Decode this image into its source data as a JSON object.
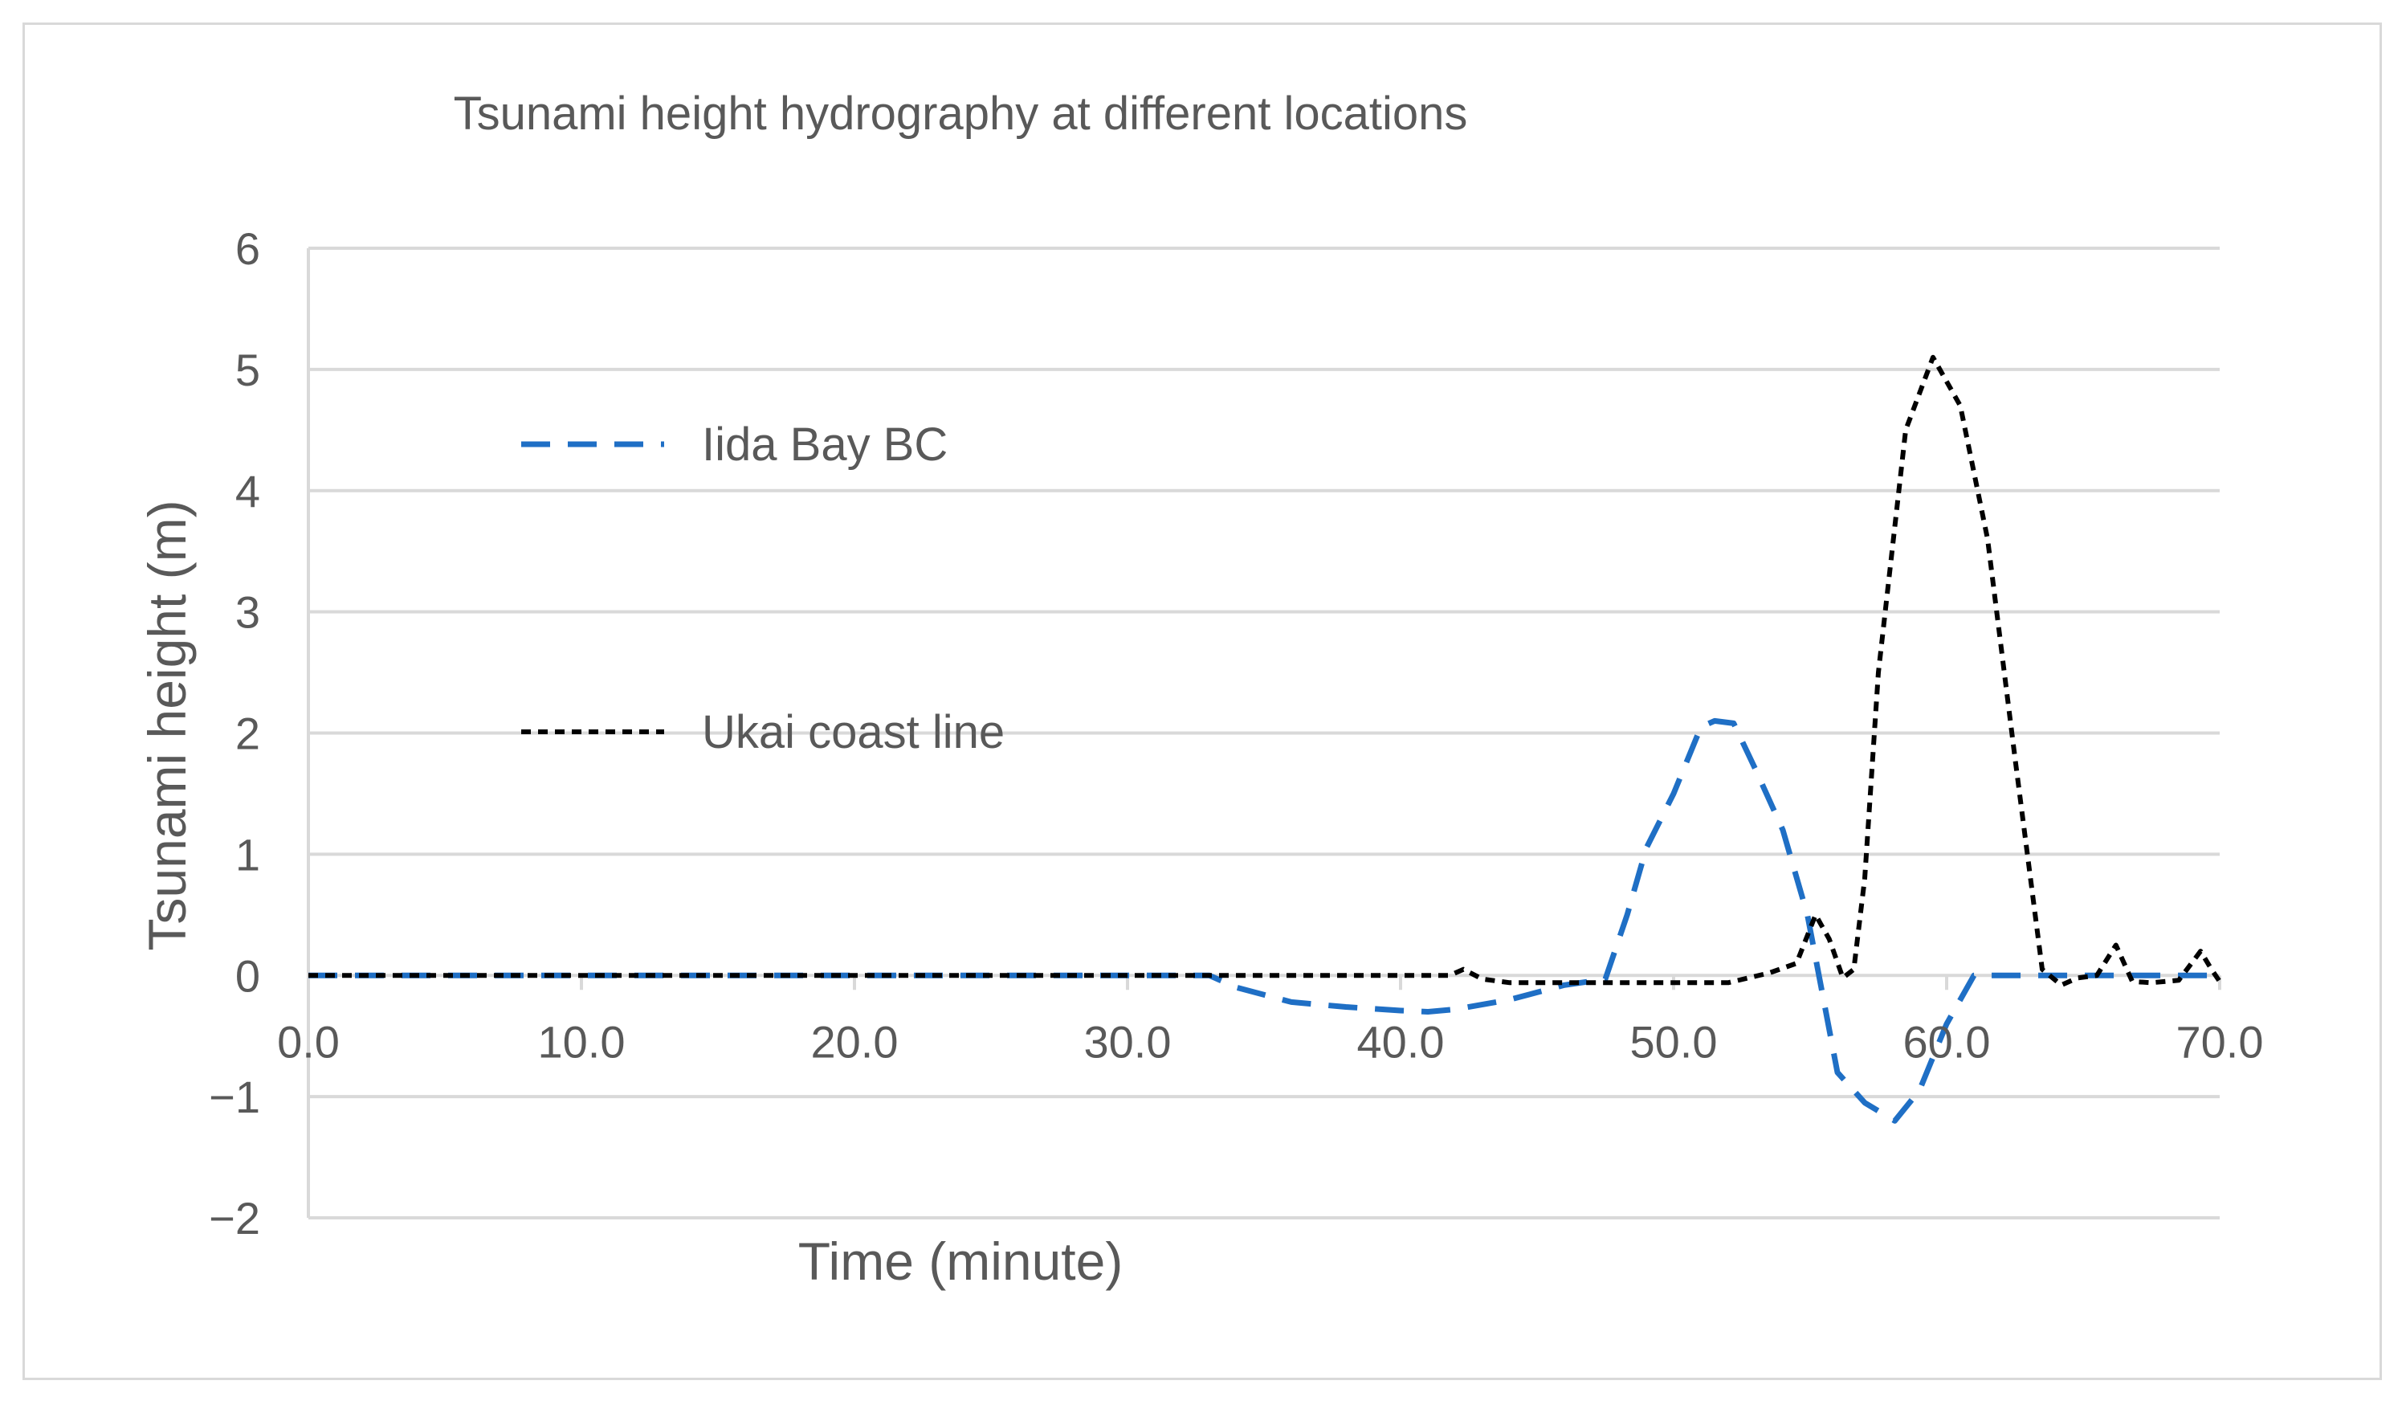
{
  "chart_data": {
    "type": "line",
    "title": "Tsunami height hydrography at different locations",
    "xlabel": "Time (minute)",
    "ylabel": "Tsunami height (m)",
    "xlim": [
      0,
      70
    ],
    "ylim": [
      -2,
      6
    ],
    "x_ticks": [
      0,
      10,
      20,
      30,
      40,
      50,
      60,
      70
    ],
    "x_tick_labels": [
      "0.0",
      "10.0",
      "20.0",
      "30.0",
      "40.0",
      "50.0",
      "60.0",
      "70.0"
    ],
    "y_ticks": [
      -2,
      -1,
      0,
      1,
      2,
      3,
      4,
      5,
      6
    ],
    "y_tick_labels": [
      "−2",
      "−1",
      "0",
      "1",
      "2",
      "3",
      "4",
      "5",
      "6"
    ],
    "grid": true,
    "legend_position": "upper-left",
    "series": [
      {
        "name": "Iida Bay BC",
        "color": "#1f6fc5",
        "dash": "long-dash",
        "x": [
          0,
          33,
          34,
          36,
          38,
          40,
          41,
          42,
          44,
          46,
          47.5,
          48.3,
          49,
          50,
          51,
          51.5,
          52.2,
          53,
          54,
          54.9,
          56,
          57,
          58.1,
          59,
          60,
          61,
          62,
          64,
          66,
          68,
          70
        ],
        "y": [
          0,
          0,
          -0.1,
          -0.22,
          -0.26,
          -0.29,
          -0.3,
          -0.28,
          -0.2,
          -0.08,
          -0.03,
          0.5,
          1.05,
          1.5,
          2.05,
          2.1,
          2.08,
          1.7,
          1.2,
          0.5,
          -0.8,
          -1.05,
          -1.2,
          -0.95,
          -0.4,
          0.0,
          0.0,
          0.0,
          0.0,
          0.0,
          0.0
        ]
      },
      {
        "name": "Ukai coast line",
        "color": "#000000",
        "dash": "short-dash",
        "x": [
          0,
          41.8,
          42.3,
          43,
          44,
          47,
          50,
          52,
          53.5,
          54.5,
          55.2,
          55.7,
          56.2,
          56.6,
          57,
          57.5,
          58.5,
          59.5,
          60.5,
          61.5,
          62.5,
          63.5,
          64.2,
          64.8,
          65.5,
          66.2,
          66.8,
          67.5,
          68.5,
          69.3,
          69.7,
          70
        ],
        "y": [
          0,
          0,
          0.05,
          -0.03,
          -0.06,
          -0.06,
          -0.06,
          -0.06,
          0.02,
          0.1,
          0.5,
          0.3,
          -0.02,
          0.05,
          0.8,
          2.5,
          4.5,
          5.1,
          4.7,
          3.6,
          1.8,
          0.05,
          -0.08,
          -0.02,
          0.0,
          0.25,
          -0.05,
          -0.06,
          -0.04,
          0.2,
          0.05,
          -0.05
        ]
      }
    ]
  }
}
